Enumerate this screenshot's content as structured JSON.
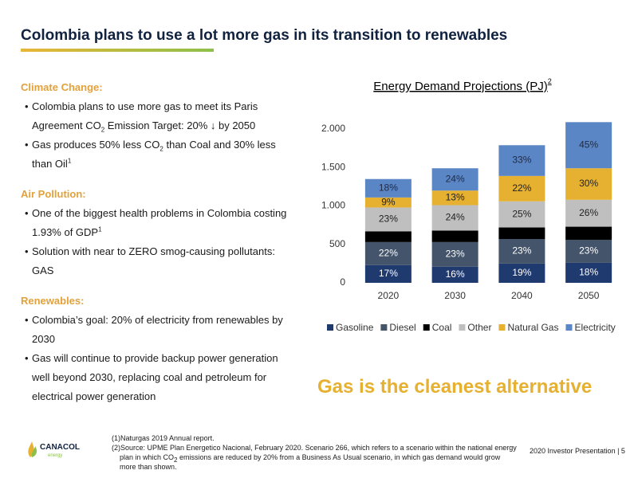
{
  "header": {
    "title": "Colombia plans to use a lot more gas in its transition to renewables"
  },
  "sections": [
    {
      "heading": "Climate Change:",
      "bullets": [
        [
          "Colombia plans to use more gas to meet its Paris Agreement CO",
          {
            "sub": "2"
          },
          " Emission Target: 20% ↓ by 2050"
        ],
        [
          "Gas produces 50% less CO",
          {
            "sub": "2"
          },
          " than Coal and 30% less than Oil",
          {
            "sup": "1"
          }
        ]
      ]
    },
    {
      "heading": "Air Pollution:",
      "bullets": [
        [
          "One of the biggest health problems in Colombia costing 1.93% of GDP",
          {
            "sup": "1"
          }
        ],
        [
          "Solution with near to ZERO smog-causing pollutants: GAS"
        ]
      ]
    },
    {
      "heading": "Renewables:",
      "bullets": [
        [
          "Colombia’s goal: 20% of electricity from renewables by 2030"
        ],
        [
          "Gas will continue to provide backup power generation well beyond 2030, replacing coal and petroleum for electrical power generation"
        ]
      ]
    }
  ],
  "chart_data": {
    "type": "stacked_bar",
    "title": "Energy Demand Projections (PJ)",
    "title_sup": "2",
    "categories": [
      "2020",
      "2030",
      "2040",
      "2050"
    ],
    "ylim": [
      0,
      2000
    ],
    "yticks": [
      0,
      500,
      {
        "value": 1000,
        "label": "1.000"
      },
      {
        "value": 1500,
        "label": "1.500"
      },
      {
        "value": 2000,
        "label": "2.000"
      }
    ],
    "legend": "bottom",
    "series": [
      {
        "name": "Gasoline",
        "color": "#1f3a6e",
        "label_color": "#ffffff",
        "values": [
          230,
          210,
          250,
          260
        ],
        "segment_labels": [
          "17%",
          "16%",
          "19%",
          "18%"
        ]
      },
      {
        "name": "Diesel",
        "color": "#44546a",
        "label_color": "#ffffff",
        "values": [
          300,
          320,
          320,
          300
        ],
        "segment_labels": [
          "22%",
          "23%",
          "23%",
          "23%"
        ]
      },
      {
        "name": "Coal",
        "color": "#000000",
        "values": [
          140,
          150,
          150,
          170
        ]
      },
      {
        "name": "Other",
        "color": "#bfbfbf",
        "label_color": "#222222",
        "values": [
          310,
          330,
          340,
          350
        ],
        "segment_labels": [
          "23%",
          "24%",
          "25%",
          "26%"
        ]
      },
      {
        "name": "Natural Gas",
        "color": "#e6b030",
        "label_color": "#222222",
        "values": [
          130,
          190,
          330,
          410
        ],
        "segment_labels": [
          "9%",
          "13%",
          "22%",
          "30%"
        ]
      },
      {
        "name": "Electricity",
        "color": "#5b86c5",
        "label_color": "#1f2a44",
        "values": [
          240,
          290,
          400,
          600
        ],
        "segment_labels": [
          "18%",
          "24%",
          "33%",
          "45%"
        ]
      }
    ]
  },
  "slogan": "Gas is the cleanest alternative",
  "footnotes": [
    [
      "(1)Naturgas 2019 Annual report."
    ],
    [
      "(2)Source: UPME Plan Energetico Nacional, February 2020. Scenario 266, which refers to a scenario within the national energy plan in which CO",
      {
        "sub": "2"
      },
      " emissions are reduced by 20% from a Business As Usual scenario, in which gas demand would grow more than shown."
    ]
  ],
  "logo": {
    "name": "CANACOL",
    "tagline": "energy"
  },
  "footer": {
    "page": "2020 Investor Presentation | 5"
  }
}
